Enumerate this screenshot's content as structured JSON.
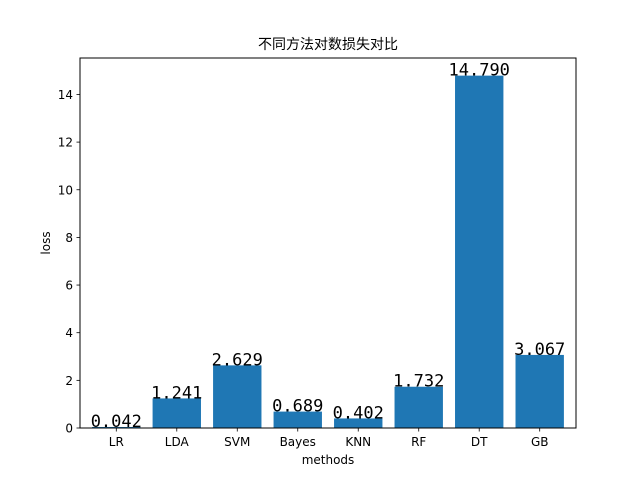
{
  "chart_data": {
    "type": "bar",
    "title": "不同方法对数损失对比",
    "xlabel": "methods",
    "ylabel": "loss",
    "categories": [
      "LR",
      "LDA",
      "SVM",
      "Bayes",
      "KNN",
      "RF",
      "DT",
      "GB"
    ],
    "values": [
      0.042,
      1.241,
      2.629,
      0.689,
      0.402,
      1.732,
      14.79,
      3.067
    ],
    "value_labels": [
      "0.042",
      "1.241",
      "2.629",
      "0.689",
      "0.402",
      "1.732",
      "14.790",
      "3.067"
    ],
    "ylim": [
      0,
      15.53
    ],
    "yticks": [
      0,
      2,
      4,
      6,
      8,
      10,
      12,
      14
    ],
    "bar_color": "#1f77b4",
    "grid": false,
    "legend": "none"
  }
}
